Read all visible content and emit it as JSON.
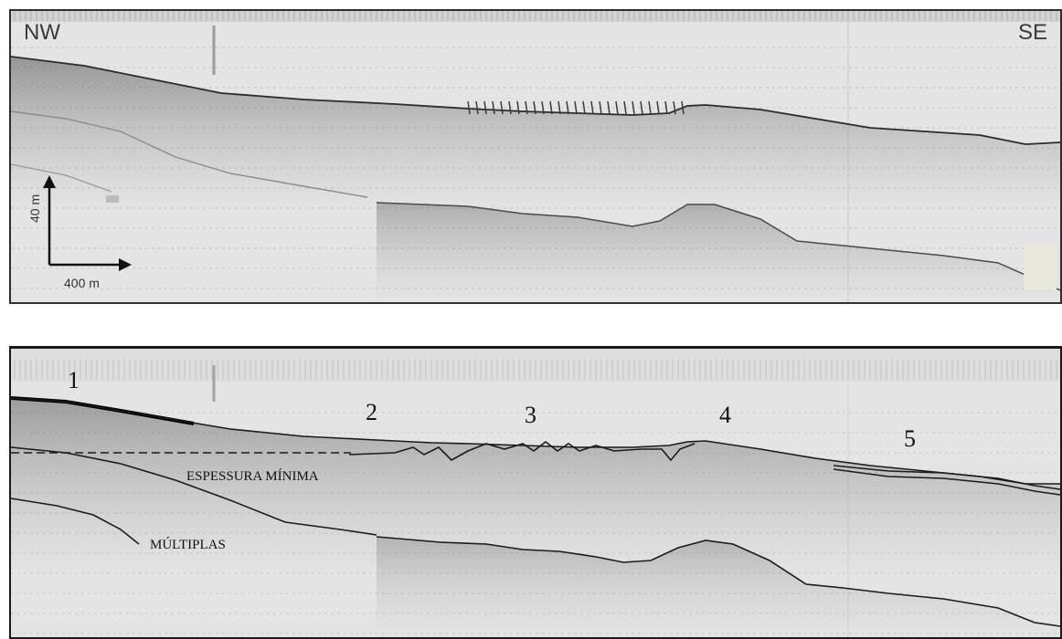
{
  "top_panel": {
    "left_label": "NW",
    "right_label": "SE",
    "scale_vertical": "40 m",
    "scale_horizontal": "400 m"
  },
  "bottom_panel": {
    "zone_labels": [
      "1",
      "2",
      "3",
      "4",
      "5"
    ],
    "annotation_thickness": "ESPESSURA MÍNIMA",
    "annotation_multiples": "MÚLTIPLAS"
  },
  "colors": {
    "background": "#e4e4e4",
    "reflector": "#1a1a1a",
    "frame": "#2f2f2f"
  }
}
